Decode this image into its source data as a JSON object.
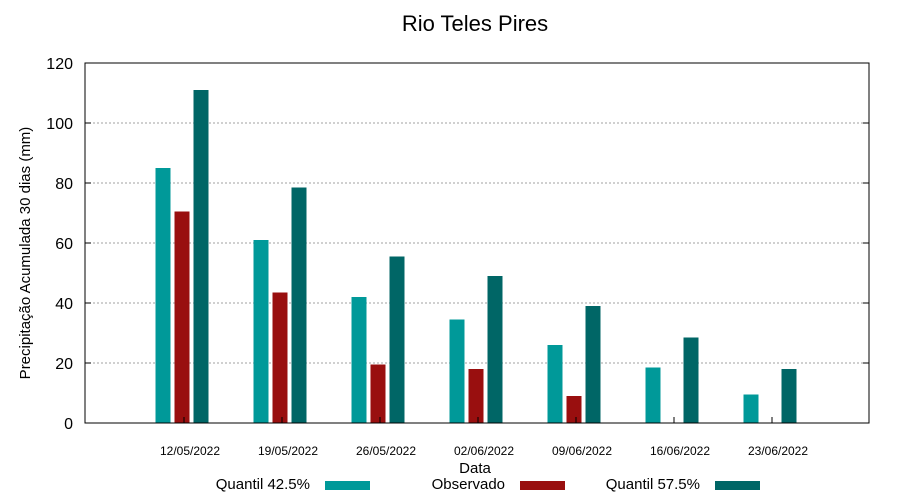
{
  "chart_data": {
    "type": "bar",
    "title": "Rio Teles Pires",
    "xlabel": "Data",
    "ylabel": "Precipitação Acumulada 30 dias (mm)",
    "ylim": [
      0,
      120
    ],
    "yticks": [
      0,
      20,
      40,
      60,
      80,
      100,
      120
    ],
    "grid": true,
    "legend_position": "bottom",
    "categories": [
      "12/05/2022",
      "19/05/2022",
      "26/05/2022",
      "02/06/2022",
      "09/06/2022",
      "16/06/2022",
      "23/06/2022"
    ],
    "series": [
      {
        "name": "Quantil 42.5%",
        "color": "#009999",
        "values": [
          85,
          61,
          42,
          34.5,
          26,
          18.5,
          9.5
        ]
      },
      {
        "name": "Observado",
        "color": "#990f0f",
        "values": [
          70.5,
          43.5,
          19.5,
          18,
          9,
          null,
          null
        ]
      },
      {
        "name": "Quantil 57.5%",
        "color": "#006666",
        "values": [
          111,
          78.5,
          55.5,
          49,
          39,
          28.5,
          18
        ]
      }
    ]
  }
}
